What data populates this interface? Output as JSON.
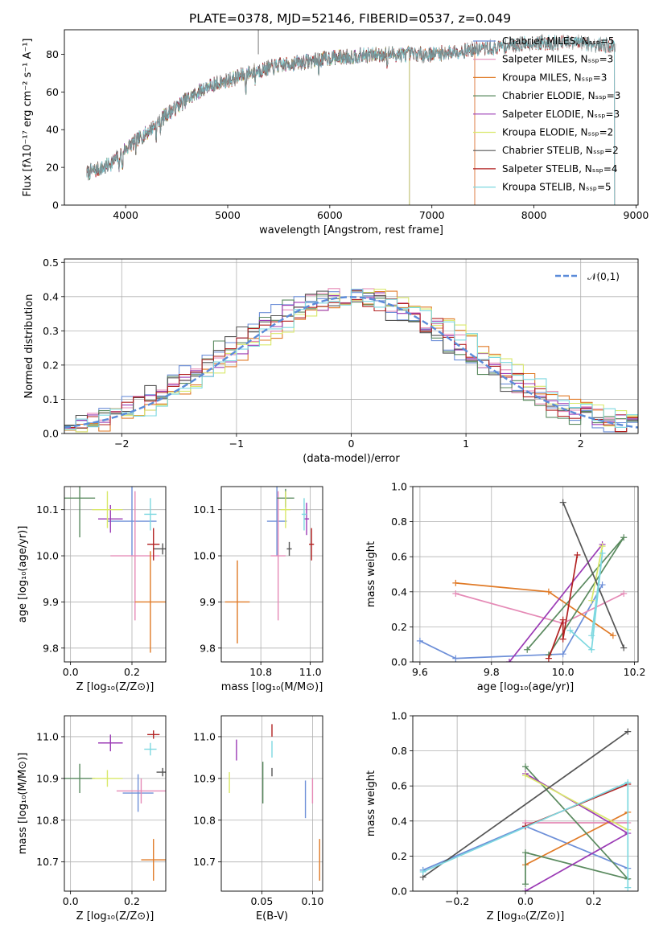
{
  "title": "PLATE=0378, MJD=52146, FIBERID=0537, z=0.049",
  "colors": {
    "Chabrier MILES": "#6d8fd8",
    "Salpeter MILES": "#e58ab6",
    "Kroupa MILES": "#e07a26",
    "Chabrier ELODIE": "#5a8a5f",
    "Salpeter ELODIE": "#9b3bb5",
    "Kroupa ELODIE": "#d9e86a",
    "Chabrier STELIB": "#555555",
    "Salpeter STELIB": "#b22222",
    "Kroupa STELIB": "#7dd8e0",
    "normal": "#5b8bd9"
  },
  "chart_data": [
    {
      "id": "spectrum",
      "type": "line",
      "title": "PLATE=0378, MJD=52146, FIBERID=0537, z=0.049",
      "xlabel": "wavelength [Angstrom, rest frame]",
      "ylabel": "Flux [fλ10⁻¹⁷ erg cm⁻² s⁻¹ A⁻¹]",
      "xlim": [
        3400,
        9020
      ],
      "ylim": [
        0,
        93
      ],
      "xticks": [
        4000,
        5000,
        6000,
        7000,
        8000,
        9000
      ],
      "yticks": [
        0,
        20,
        40,
        60,
        80
      ],
      "legend_position": "upper right",
      "series": [
        {
          "name": "Chabrier MILES, Nₛₛₚ=5",
          "model": "Chabrier MILES",
          "end": 7420
        },
        {
          "name": "Salpeter MILES, Nₛₛₚ=3",
          "model": "Salpeter MILES",
          "end": 7420
        },
        {
          "name": "Kroupa MILES, Nₛₛₚ=3",
          "model": "Kroupa MILES",
          "end": 7420
        },
        {
          "name": "Chabrier ELODIE, Nₛₛₚ=3",
          "model": "Chabrier ELODIE",
          "end": 6780
        },
        {
          "name": "Salpeter ELODIE, Nₛₛₚ=3",
          "model": "Salpeter ELODIE",
          "end": 6780
        },
        {
          "name": "Kroupa ELODIE, Nₛₛₚ=2",
          "model": "Kroupa ELODIE",
          "end": 6780
        },
        {
          "name": "Chabrier STELIB, Nₛₛₚ=2",
          "model": "Chabrier STELIB",
          "end": 8790
        },
        {
          "name": "Salpeter STELIB, Nₛₛₚ=4",
          "model": "Salpeter STELIB",
          "end": 8790
        },
        {
          "name": "Kroupa STELIB, Nₛₛₚ=5",
          "model": "Kroupa STELIB",
          "end": 8790
        }
      ],
      "start_wavelength": 3620,
      "flux_trend": {
        "x": [
          3620,
          3800,
          3900,
          4000,
          4200,
          4400,
          4600,
          4800,
          5000,
          5200,
          5500,
          6000,
          6500,
          7000,
          7500,
          8000,
          8500,
          8800
        ],
        "y": [
          17,
          20,
          24,
          30,
          38,
          48,
          56,
          63,
          66,
          70,
          74,
          78,
          80,
          80,
          83,
          86,
          86,
          84
        ]
      }
    },
    {
      "id": "residuals",
      "type": "histogram",
      "xlabel": "(data-model)/error",
      "ylabel": "Normed distribution",
      "xlim": [
        -2.5,
        2.5
      ],
      "ylim": [
        0,
        0.51
      ],
      "xticks": [
        -2,
        -1,
        0,
        1,
        2
      ],
      "yticks": [
        0.0,
        0.1,
        0.2,
        0.3,
        0.4,
        0.5
      ],
      "legend_position": "upper right",
      "reference": {
        "name": "𝒩(0,1)",
        "mean": 0,
        "sigma": 1
      },
      "bin_width": 0.1
    },
    {
      "id": "age-vs-Z",
      "type": "errorbar",
      "xlabel": "Z [log₁₀(Z/Z⊙)]",
      "ylabel": "age [log₁₀(age/yr)]",
      "xlim": [
        -0.02,
        0.31
      ],
      "ylim": [
        9.77,
        10.15
      ],
      "xticks": [
        0.0,
        0.2
      ],
      "yticks": [
        9.8,
        9.9,
        10.0,
        10.1
      ],
      "points": [
        {
          "model": "Chabrier MILES",
          "x": 0.2,
          "y": 10.075,
          "xerr": 0.08,
          "yerr": 0.075
        },
        {
          "model": "Salpeter MILES",
          "x": 0.21,
          "y": 10.0,
          "xerr": 0.08,
          "yerr": 0.14
        },
        {
          "model": "Kroupa MILES",
          "x": 0.26,
          "y": 9.9,
          "xerr": 0.05,
          "yerr": 0.11
        },
        {
          "model": "Chabrier ELODIE",
          "x": 0.03,
          "y": 10.125,
          "xerr": 0.05,
          "yerr": 0.085
        },
        {
          "model": "Salpeter ELODIE",
          "x": 0.13,
          "y": 10.08,
          "xerr": 0.04,
          "yerr": 0.03
        },
        {
          "model": "Kroupa ELODIE",
          "x": 0.12,
          "y": 10.1,
          "xerr": 0.05,
          "yerr": 0.04
        },
        {
          "model": "Chabrier STELIB",
          "x": 0.3,
          "y": 10.015,
          "xerr": 0.03,
          "yerr": 0.012
        },
        {
          "model": "Salpeter STELIB",
          "x": 0.27,
          "y": 10.025,
          "xerr": 0.02,
          "yerr": 0.035
        },
        {
          "model": "Kroupa STELIB",
          "x": 0.26,
          "y": 10.09,
          "xerr": 0.02,
          "yerr": 0.035
        }
      ]
    },
    {
      "id": "age-vs-mass",
      "type": "errorbar",
      "xlabel": "mass [log₁₀(M/M⊙)]",
      "ylabel": "",
      "xlim": [
        10.64,
        11.05
      ],
      "ylim": [
        9.77,
        10.15
      ],
      "xticks": [
        10.8,
        11.0
      ],
      "yticks": [
        9.8,
        9.9,
        10.0,
        10.1
      ],
      "points": [
        {
          "model": "Chabrier MILES",
          "x": 10.865,
          "y": 10.075,
          "xerr": 0.04,
          "yerr": 0.075
        },
        {
          "model": "Salpeter MILES",
          "x": 10.87,
          "y": 10.0,
          "xerr": 0.03,
          "yerr": 0.14
        },
        {
          "model": "Kroupa MILES",
          "x": 10.705,
          "y": 9.9,
          "xerr": 0.05,
          "yerr": 0.09
        },
        {
          "model": "Chabrier ELODIE",
          "x": 10.9,
          "y": 10.125,
          "xerr": 0.035,
          "yerr": 0.02
        },
        {
          "model": "Salpeter ELODIE",
          "x": 10.985,
          "y": 10.08,
          "xerr": 0.01,
          "yerr": 0.035
        },
        {
          "model": "Kroupa ELODIE",
          "x": 10.9,
          "y": 10.1,
          "xerr": 0.02,
          "yerr": 0.04
        },
        {
          "model": "Chabrier STELIB",
          "x": 10.915,
          "y": 10.015,
          "xerr": 0.01,
          "yerr": 0.015
        },
        {
          "model": "Salpeter STELIB",
          "x": 11.005,
          "y": 10.025,
          "xerr": 0.01,
          "yerr": 0.035
        },
        {
          "model": "Kroupa STELIB",
          "x": 10.975,
          "y": 10.09,
          "xerr": 0.01,
          "yerr": 0.035
        }
      ]
    },
    {
      "id": "massweight-vs-age",
      "type": "line",
      "xlabel": "age [log₁₀(age/yr)]",
      "ylabel": "mass weight",
      "xlim": [
        9.58,
        10.21
      ],
      "ylim": [
        0,
        1.0
      ],
      "xticks": [
        9.6,
        9.8,
        10.0,
        10.2
      ],
      "yticks": [
        0.0,
        0.2,
        0.4,
        0.6,
        0.8,
        1.0
      ],
      "series": [
        {
          "model": "Chabrier MILES",
          "x": [
            9.6,
            9.7,
            10.0,
            10.11
          ],
          "y": [
            0.12,
            0.02,
            0.045,
            0.44
          ]
        },
        {
          "model": "Salpeter MILES",
          "x": [
            9.7,
            10.0,
            10.17
          ],
          "y": [
            0.39,
            0.22,
            0.39
          ]
        },
        {
          "model": "Kroupa MILES",
          "x": [
            9.7,
            9.96,
            10.14
          ],
          "y": [
            0.45,
            0.4,
            0.15
          ]
        },
        {
          "model": "Chabrier ELODIE",
          "x": [
            9.9,
            10.17,
            9.96
          ],
          "y": [
            0.07,
            0.71,
            0.04
          ]
        },
        {
          "model": "Salpeter ELODIE",
          "x": [
            9.85,
            10.11
          ],
          "y": [
            0.0,
            0.67
          ]
        },
        {
          "model": "Kroupa ELODIE",
          "x": [
            10.08,
            10.11
          ],
          "y": [
            0.35,
            0.66
          ]
        },
        {
          "model": "Chabrier STELIB",
          "x": [
            10.0,
            10.17
          ],
          "y": [
            0.91,
            0.08
          ]
        },
        {
          "model": "Salpeter STELIB",
          "x": [
            9.96,
            10.0,
            10.0,
            10.04
          ],
          "y": [
            0.02,
            0.24,
            0.13,
            0.61
          ]
        },
        {
          "model": "Kroupa STELIB",
          "x": [
            10.02,
            10.08,
            10.11,
            10.08
          ],
          "y": [
            0.18,
            0.07,
            0.62,
            0.15
          ]
        }
      ]
    },
    {
      "id": "mass-vs-Z",
      "type": "errorbar",
      "xlabel": "Z [log₁₀(Z/Z⊙)]",
      "ylabel": "mass [log₁₀(M/M⊙)]",
      "xlim": [
        -0.02,
        0.31
      ],
      "ylim": [
        10.63,
        11.05
      ],
      "xticks": [
        0.0,
        0.2
      ],
      "yticks": [
        10.7,
        10.8,
        10.9,
        11.0
      ],
      "points": [
        {
          "model": "Chabrier MILES",
          "x": 0.22,
          "y": 10.865,
          "xerr": 0.05,
          "yerr": 0.045
        },
        {
          "model": "Salpeter MILES",
          "x": 0.23,
          "y": 10.87,
          "xerr": 0.08,
          "yerr": 0.03
        },
        {
          "model": "Kroupa MILES",
          "x": 0.27,
          "y": 10.705,
          "xerr": 0.04,
          "yerr": 0.05
        },
        {
          "model": "Chabrier ELODIE",
          "x": 0.03,
          "y": 10.9,
          "xerr": 0.05,
          "yerr": 0.035
        },
        {
          "model": "Salpeter ELODIE",
          "x": 0.13,
          "y": 10.985,
          "xerr": 0.04,
          "yerr": 0.02
        },
        {
          "model": "Kroupa ELODIE",
          "x": 0.12,
          "y": 10.9,
          "xerr": 0.05,
          "yerr": 0.02
        },
        {
          "model": "Chabrier STELIB",
          "x": 0.3,
          "y": 10.915,
          "xerr": 0.02,
          "yerr": 0.01
        },
        {
          "model": "Salpeter STELIB",
          "x": 0.27,
          "y": 11.005,
          "xerr": 0.02,
          "yerr": 0.01
        },
        {
          "model": "Kroupa STELIB",
          "x": 0.26,
          "y": 10.97,
          "xerr": 0.02,
          "yerr": 0.015
        }
      ]
    },
    {
      "id": "mass-vs-ebv",
      "type": "errorbar",
      "xlabel": "E(B-V)",
      "ylabel": "",
      "xlim": [
        0.01,
        0.11
      ],
      "ylim": [
        10.63,
        11.05
      ],
      "xticks": [
        0.05,
        0.1
      ],
      "yticks": [
        10.7,
        10.8,
        10.9,
        11.0
      ],
      "points": [
        {
          "model": "Chabrier MILES",
          "x": 0.093,
          "y": 10.85,
          "xerr": 0,
          "yerr": 0.045
        },
        {
          "model": "Salpeter MILES",
          "x": 0.1,
          "y": 10.87,
          "xerr": 0,
          "yerr": 0.03
        },
        {
          "model": "Kroupa MILES",
          "x": 0.107,
          "y": 10.705,
          "xerr": 0,
          "yerr": 0.05
        },
        {
          "model": "Chabrier ELODIE",
          "x": 0.051,
          "y": 10.89,
          "xerr": 0,
          "yerr": 0.05
        },
        {
          "model": "Salpeter ELODIE",
          "x": 0.025,
          "y": 10.968,
          "xerr": 0,
          "yerr": 0.025
        },
        {
          "model": "Kroupa ELODIE",
          "x": 0.018,
          "y": 10.89,
          "xerr": 0,
          "yerr": 0.025
        },
        {
          "model": "Chabrier STELIB",
          "x": 0.06,
          "y": 10.915,
          "xerr": 0,
          "yerr": 0.01
        },
        {
          "model": "Salpeter STELIB",
          "x": 0.06,
          "y": 11.015,
          "xerr": 0,
          "yerr": 0.015
        },
        {
          "model": "Kroupa STELIB",
          "x": 0.06,
          "y": 10.97,
          "xerr": 0,
          "yerr": 0.02
        }
      ]
    },
    {
      "id": "massweight-vs-Z",
      "type": "line",
      "xlabel": "Z [log₁₀(Z/Z⊙)]",
      "ylabel": "mass weight",
      "xlim": [
        -0.33,
        0.33
      ],
      "ylim": [
        0,
        1.0
      ],
      "xticks": [
        -0.2,
        0.0,
        0.2
      ],
      "yticks": [
        0.0,
        0.2,
        0.4,
        0.6,
        0.8,
        1.0
      ],
      "series": [
        {
          "model": "Chabrier MILES",
          "x": [
            -0.3,
            0.0,
            0.3
          ],
          "y": [
            0.12,
            0.37,
            0.13
          ]
        },
        {
          "model": "Salpeter MILES",
          "x": [
            0.0,
            0.3
          ],
          "y": [
            0.39,
            0.39
          ]
        },
        {
          "model": "Kroupa MILES",
          "x": [
            0.0,
            0.3
          ],
          "y": [
            0.15,
            0.45
          ]
        },
        {
          "model": "Chabrier ELODIE",
          "x": [
            0.0,
            0.3,
            0.0,
            0.0
          ],
          "y": [
            0.71,
            0.07,
            0.22,
            0.04
          ]
        },
        {
          "model": "Salpeter ELODIE",
          "x": [
            0.0,
            0.3,
            0.0
          ],
          "y": [
            0.67,
            0.33,
            0.0
          ]
        },
        {
          "model": "Kroupa ELODIE",
          "x": [
            0.0,
            0.3
          ],
          "y": [
            0.66,
            0.35
          ]
        },
        {
          "model": "Chabrier STELIB",
          "x": [
            -0.3,
            0.3
          ],
          "y": [
            0.08,
            0.91
          ]
        },
        {
          "model": "Salpeter STELIB",
          "x": [
            0.0,
            0.3
          ],
          "y": [
            0.37,
            0.61
          ]
        },
        {
          "model": "Kroupa STELIB",
          "x": [
            -0.3,
            0.3,
            0.3
          ],
          "y": [
            0.11,
            0.62,
            0.02
          ]
        }
      ]
    }
  ]
}
